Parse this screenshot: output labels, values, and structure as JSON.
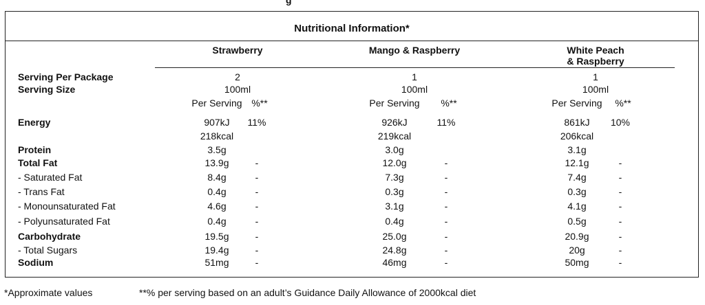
{
  "title": "Nutritional Information*",
  "flavours": [
    "Strawberry",
    "Mango & Raspberry",
    "White Peach\n& Raspberry"
  ],
  "meta": {
    "serving_per_package_label": "Serving Per Package",
    "serving_size_label": "Serving Size",
    "serving_per_package": [
      "2",
      "1",
      "1"
    ],
    "serving_size": [
      "100ml",
      "100ml",
      "100ml"
    ],
    "per_serving_label": "Per Serving",
    "percent_label": "%**"
  },
  "energy": {
    "label": "Energy",
    "kj": [
      "907kJ",
      "926kJ",
      "861kJ"
    ],
    "kcal": [
      "218kcal",
      "219kcal",
      "206kcal"
    ],
    "percent": [
      "11%",
      "11%",
      "10%"
    ]
  },
  "rows": [
    {
      "label": "Protein",
      "bold": true,
      "values": [
        "3.5g",
        "3.0g",
        "3.1g"
      ],
      "pct": [
        "",
        "",
        ""
      ]
    },
    {
      "label": "Total Fat",
      "bold": true,
      "values": [
        "13.9g",
        "12.0g",
        "12.1g"
      ],
      "pct": [
        "-",
        "-",
        "-"
      ]
    },
    {
      "label": "- Saturated Fat",
      "bold": false,
      "values": [
        "8.4g",
        "7.3g",
        "7.4g"
      ],
      "pct": [
        "-",
        "-",
        "-"
      ]
    },
    {
      "label": "- Trans Fat",
      "bold": false,
      "values": [
        "0.4g",
        "0.3g",
        "0.3g"
      ],
      "pct": [
        "-",
        "-",
        "-"
      ]
    },
    {
      "label": "- Monounsaturated Fat",
      "bold": false,
      "values": [
        "4.6g",
        "3.1g",
        "4.1g"
      ],
      "pct": [
        "-",
        "-",
        "-"
      ]
    },
    {
      "label": "- Polyunsaturated Fat",
      "bold": false,
      "values": [
        "0.4g",
        "0.4g",
        "0.5g"
      ],
      "pct": [
        "-",
        "-",
        "-"
      ]
    },
    {
      "label": "Carbohydrate",
      "bold": true,
      "values": [
        "19.5g",
        "25.0g",
        "20.9g"
      ],
      "pct": [
        "-",
        "-",
        "-"
      ]
    },
    {
      "label": "- Total Sugars",
      "bold": false,
      "values": [
        "19.4g",
        "24.8g",
        "20g"
      ],
      "pct": [
        "-",
        "-",
        "-"
      ]
    },
    {
      "label": "Sodium",
      "bold": true,
      "values": [
        "51mg",
        "46mg",
        "50mg"
      ],
      "pct": [
        "-",
        "-",
        "-"
      ]
    }
  ],
  "footer": {
    "note1": "*Approximate values",
    "note2": "**% per serving based on an adult’s Guidance Daily Allowance of 2000kcal diet"
  }
}
